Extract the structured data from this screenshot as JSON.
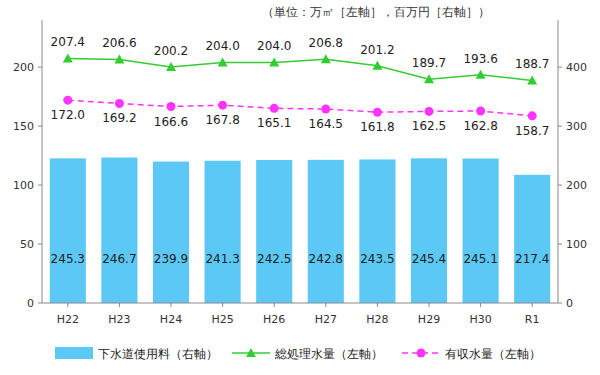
{
  "chart_data": {
    "type": "bar",
    "title": "（単位：万㎥［左軸］，百万円［右軸］）",
    "categories": [
      "H22",
      "H23",
      "H24",
      "H25",
      "H26",
      "H27",
      "H28",
      "H29",
      "H30",
      "R1"
    ],
    "series": [
      {
        "name": "下水道使用料（右軸）",
        "type": "bar",
        "axis": "y2",
        "color": "#5cc8f5",
        "values": [
          245.3,
          246.7,
          239.9,
          241.3,
          242.5,
          242.8,
          243.5,
          245.4,
          245.1,
          217.4
        ],
        "value_labels": [
          "245.3",
          "246.7",
          "239.9",
          "241.3",
          "242.5",
          "242.8",
          "243.5",
          "245.4",
          "245.1",
          "217.4"
        ]
      },
      {
        "name": "総処理水量（左軸）",
        "type": "line",
        "color": "#33cc33",
        "marker": "triangle",
        "line_style": "solid",
        "values": [
          207.4,
          206.6,
          200.2,
          204.0,
          204.0,
          206.8,
          201.2,
          189.7,
          193.6,
          188.7
        ],
        "value_labels": [
          "207.4",
          "206.6",
          "200.2",
          "204.0",
          "204.0",
          "206.8",
          "201.2",
          "189.7",
          "193.6",
          "188.7"
        ]
      },
      {
        "name": "有収水量（左軸）",
        "type": "line",
        "color": "#ff33ff",
        "marker": "circle",
        "line_style": "dashed",
        "values": [
          172.0,
          169.2,
          166.6,
          167.8,
          165.1,
          164.5,
          161.8,
          162.5,
          162.8,
          158.7
        ],
        "value_labels": [
          "172.0",
          "169.2",
          "166.6",
          "167.8",
          "165.1",
          "164.5",
          "161.8",
          "162.5",
          "162.8",
          "158.7"
        ]
      }
    ],
    "ylim": [
      0,
      240
    ],
    "yticks": [
      0,
      50,
      100,
      150,
      200
    ],
    "y2lim": [
      0,
      480
    ],
    "y2ticks": [
      0,
      100,
      200,
      300,
      400
    ],
    "grid": false,
    "data_labels": true,
    "legend": "bottom"
  }
}
